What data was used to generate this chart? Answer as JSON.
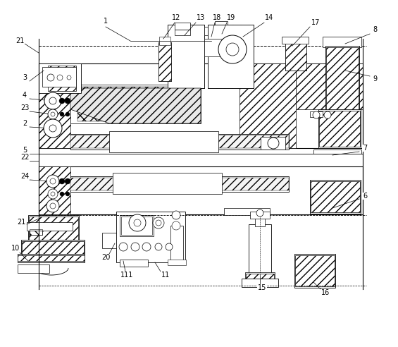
{
  "bg": "#ffffff",
  "lc": "#000000",
  "lw": 0.6,
  "fig_w": 5.65,
  "fig_h": 4.92,
  "dpi": 100,
  "xmin": 0,
  "xmax": 565,
  "ymin": 0,
  "ymax": 492
}
